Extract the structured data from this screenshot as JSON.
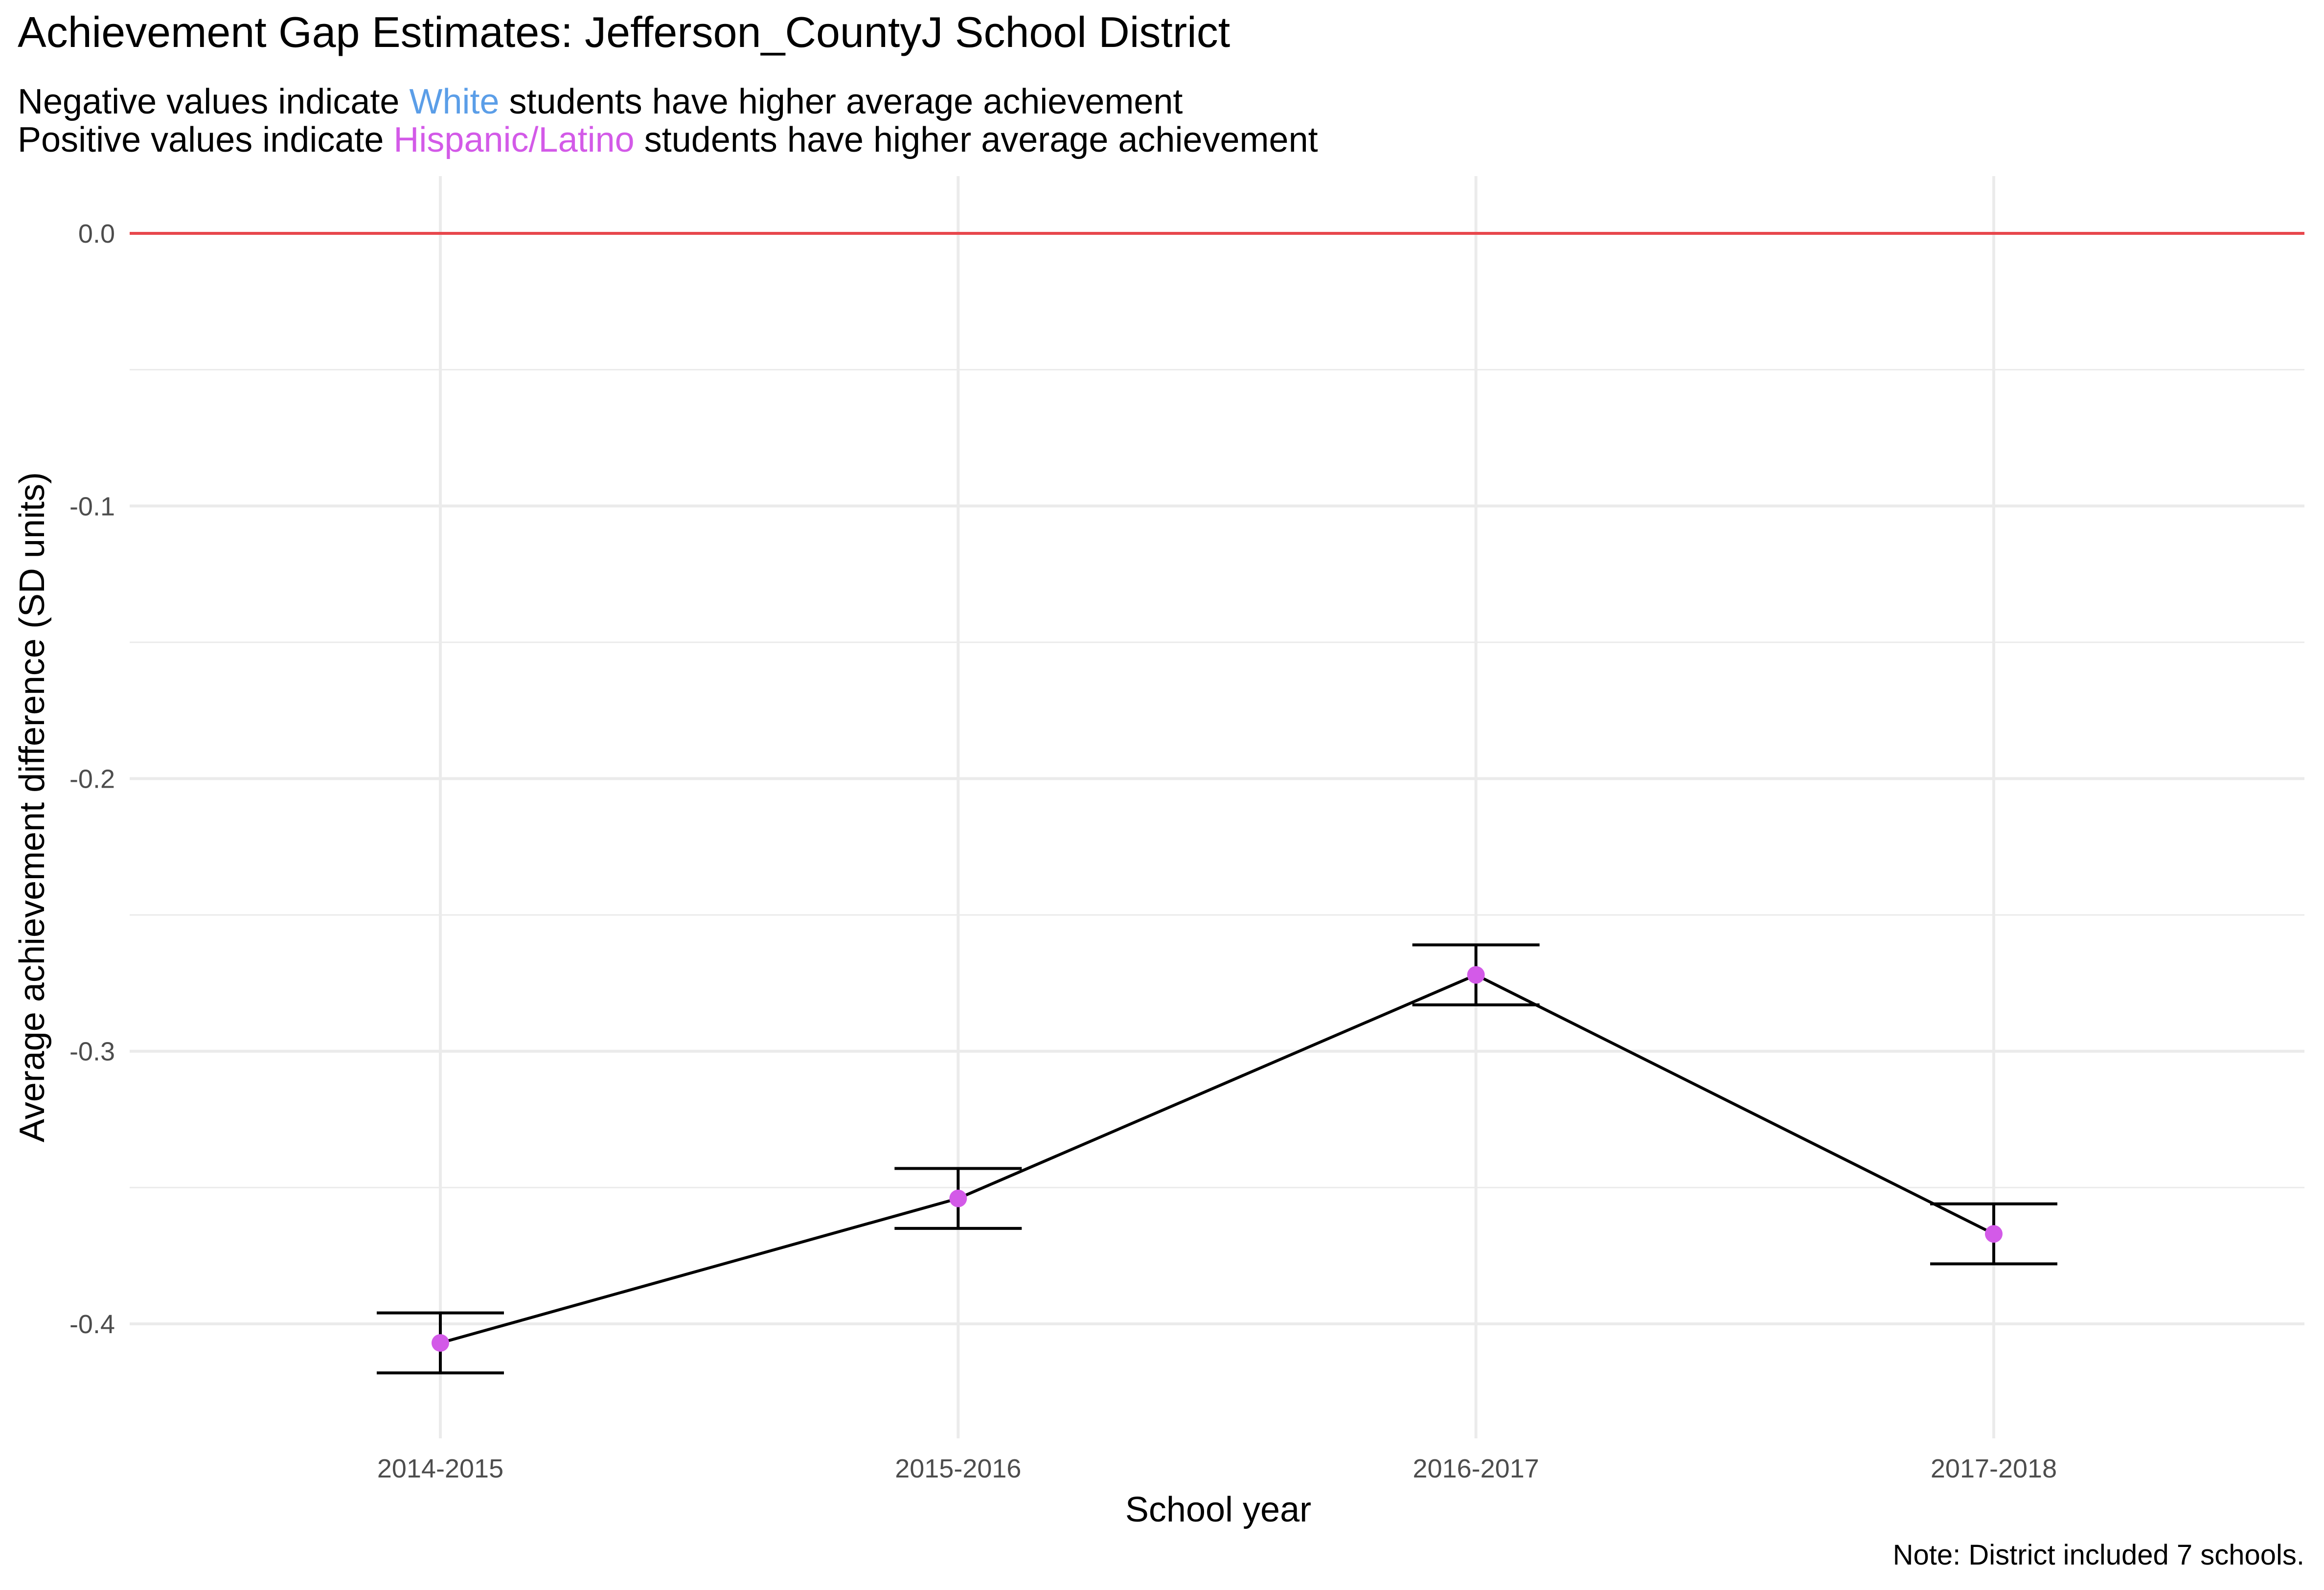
{
  "chart_data": {
    "type": "line",
    "title": "Achievement Gap Estimates: Jefferson_CountyJ  School District",
    "subtitle": {
      "line1": {
        "before": "Negative values indicate ",
        "highlight": "White",
        "after": " students  have higher average achievement"
      },
      "line2": {
        "before": "Positive values indicate ",
        "highlight": "Hispanic/Latino",
        "after": " students  have higher average achievement"
      }
    },
    "xlabel": "School year",
    "ylabel": "Average achievement difference (SD units)",
    "categories": [
      "2014-2015",
      "2015-2016",
      "2016-2017",
      "2017-2018"
    ],
    "series": [
      {
        "values": [
          -0.407,
          -0.354,
          -0.272,
          -0.367
        ],
        "error_low": [
          -0.418,
          -0.365,
          -0.283,
          -0.378
        ],
        "error_high": [
          -0.396,
          -0.343,
          -0.261,
          -0.356
        ]
      }
    ],
    "reference_line": 0.0,
    "ylim": [
      -0.442,
      0.021
    ],
    "y_ticks": [
      "0.0",
      "-0.1",
      "-0.2",
      "-0.3",
      "-0.4"
    ],
    "grid": true,
    "caption": "Note: District included 7 schools.",
    "colors": {
      "point": "#d35ae8",
      "line": "#000000",
      "reference": "#e8474c",
      "white_highlight": "#5b9ee8",
      "hispanic_highlight": "#d35ae8",
      "grid": "#ebebeb"
    }
  }
}
